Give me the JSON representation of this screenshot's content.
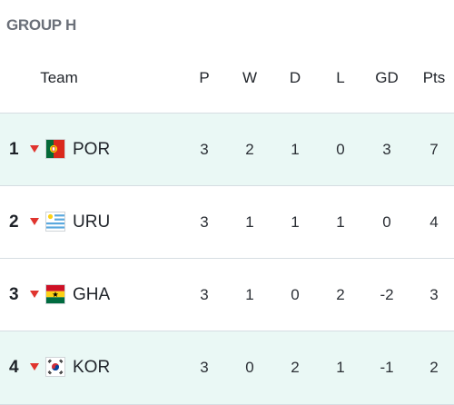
{
  "group_title": "GROUP H",
  "columns": {
    "team": "Team",
    "p": "P",
    "w": "W",
    "d": "D",
    "l": "L",
    "gd": "GD",
    "pts": "Pts"
  },
  "rows": [
    {
      "pos": "1",
      "team": "POR",
      "flag_icon": "portugal-flag-icon",
      "p": "3",
      "w": "2",
      "d": "1",
      "l": "0",
      "gd": "3",
      "pts": "7",
      "qualified": true
    },
    {
      "pos": "2",
      "team": "URU",
      "flag_icon": "uruguay-flag-icon",
      "p": "3",
      "w": "1",
      "d": "1",
      "l": "1",
      "gd": "0",
      "pts": "4",
      "qualified": false
    },
    {
      "pos": "3",
      "team": "GHA",
      "flag_icon": "ghana-flag-icon",
      "p": "3",
      "w": "1",
      "d": "0",
      "l": "2",
      "gd": "-2",
      "pts": "3",
      "qualified": false
    },
    {
      "pos": "4",
      "team": "KOR",
      "flag_icon": "south-korea-flag-icon",
      "p": "3",
      "w": "0",
      "d": "2",
      "l": "1",
      "gd": "-1",
      "pts": "2",
      "qualified": true
    }
  ],
  "colors": {
    "qualified_row_bg": "#eaf8f5",
    "arrow_down": "#e0342e",
    "title_gray": "#6b7079"
  }
}
